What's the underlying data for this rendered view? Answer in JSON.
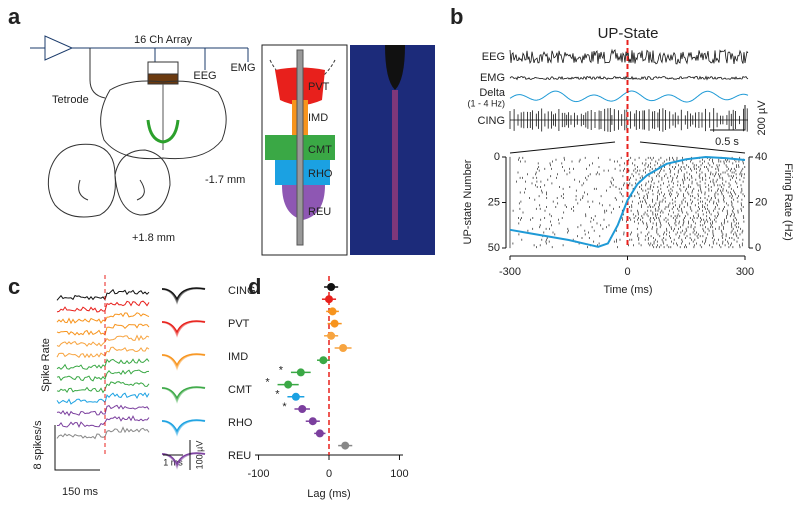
{
  "panels": {
    "a": {
      "letter": "a",
      "array": "16 Ch Array",
      "eeg": "EEG",
      "emg": "EMG",
      "tetrode": "Tetrode",
      "coord1": "-1.7 mm",
      "coord2": "+1.8 mm",
      "regions": [
        "PVT",
        "IMD",
        "CMT",
        "RHO",
        "REU"
      ]
    },
    "b": {
      "letter": "b",
      "traces": [
        "EEG",
        "EMG",
        "Delta",
        "CING"
      ],
      "delta_band": "(1 - 4 Hz)",
      "time_scale": "0.5 s",
      "volt_scale": "200 µV"
    },
    "c": {
      "letter": "c",
      "regions": [
        "CING",
        "PVT",
        "IMD",
        "CMT",
        "RHO",
        "REU"
      ],
      "ylabel": "Spike Rate",
      "rate_scale": "8 spikes/s",
      "time_scale": "150 ms",
      "wave_time": "1 ms",
      "wave_volt": "100 µV"
    },
    "d": {
      "letter": "d"
    }
  },
  "chart_data": [
    {
      "type": "raster",
      "title": "UP-State",
      "xlabel": "Time (ms)",
      "ylabel": "UP-state Number",
      "y2label": "Firing Rate (Hz)",
      "xlim": [
        -300,
        300
      ],
      "xticks": [
        -300,
        0,
        300
      ],
      "ylim": [
        0,
        50
      ],
      "yticks": [
        0,
        25,
        50
      ],
      "y2lim": [
        0,
        40
      ],
      "y2ticks": [
        0,
        20,
        40
      ],
      "x": [
        -300,
        -250,
        -200,
        -150,
        -100,
        -75,
        -50,
        -25,
        0,
        25,
        50,
        100,
        150,
        200,
        250,
        300
      ],
      "series": [
        {
          "color": "#1f9ad6",
          "axis": "y2",
          "values": [
            8,
            6.5,
            5,
            3.5,
            1.5,
            0.5,
            2,
            10,
            21,
            28,
            32,
            37,
            39,
            40,
            39.5,
            38.7
          ]
        }
      ]
    },
    {
      "type": "dot",
      "xlabel": "Lag (ms)",
      "xlim": [
        -105,
        105
      ],
      "xticks": [
        -100,
        0,
        100
      ],
      "values": [
        3,
        0,
        5,
        8,
        3,
        20,
        -8,
        -40,
        -58,
        -47,
        -38,
        -23,
        -13,
        23
      ],
      "errors": [
        10,
        10,
        9,
        10,
        10,
        12,
        9,
        14,
        15,
        12,
        11,
        10,
        8,
        10
      ],
      "colors": [
        "#111111",
        "#e8201c",
        "#f7941d",
        "#f7941d",
        "#f7a440",
        "#f7a440",
        "#3aa845",
        "#3aa845",
        "#3aa845",
        "#1ba1e2",
        "#7b3f9e",
        "#7b3f9e",
        "#7b3f9e",
        "#888888"
      ],
      "significance": [
        null,
        null,
        null,
        null,
        null,
        null,
        null,
        "*",
        "*",
        "*",
        "*",
        null,
        null,
        null
      ]
    }
  ]
}
